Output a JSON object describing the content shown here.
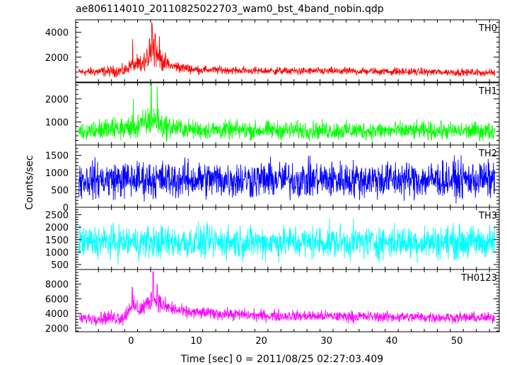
{
  "chart_data": {
    "type": "line",
    "title": "ae806114010_20110825022703_wam0_bst_4band_nobin.qdp",
    "xlabel": "Time [sec] 0 = 2011/08/25 02:27:03.409",
    "ylabel": "Counts/sec",
    "xlim": [
      -8.5,
      56.5
    ],
    "x_ticks": [
      0,
      10,
      20,
      30,
      40,
      50
    ],
    "x_tick_labels": [
      "0",
      "10",
      "20",
      "30",
      "40",
      "50"
    ],
    "x_data_range": [
      -8,
      55.8
    ],
    "panels": [
      {
        "label": "TH0",
        "color": "#ff0000",
        "ylim": [
          0,
          5000
        ],
        "y_ticks": [
          2000,
          4000
        ],
        "y_tick_labels": [
          "2000",
          "4000"
        ],
        "baseline": [
          [
            -8,
            800
          ],
          [
            -1,
            900
          ],
          [
            0,
            1400
          ],
          [
            1.5,
            1300
          ],
          [
            2.5,
            1800
          ],
          [
            3.3,
            2800
          ],
          [
            4.5,
            1800
          ],
          [
            6,
            1300
          ],
          [
            10,
            1000
          ],
          [
            20,
            900
          ],
          [
            40,
            850
          ],
          [
            55.8,
            750
          ]
        ],
        "noise": [
          [
            -8,
            250
          ],
          [
            0,
            400
          ],
          [
            3.3,
            900
          ],
          [
            6,
            400
          ],
          [
            10,
            250
          ],
          [
            55.8,
            220
          ]
        ],
        "spikes": [
          [
            3.2,
            4900
          ],
          [
            3.7,
            4000
          ],
          [
            2.8,
            3600
          ],
          [
            0.3,
            3500
          ],
          [
            4.4,
            3900
          ]
        ]
      },
      {
        "label": "TH1",
        "color": "#00ff00",
        "ylim": [
          0,
          2700
        ],
        "y_ticks": [
          1000,
          2000
        ],
        "y_tick_labels": [
          "1000",
          "2000"
        ],
        "baseline": [
          [
            -8,
            600
          ],
          [
            0,
            750
          ],
          [
            1.5,
            850
          ],
          [
            3.3,
            1100
          ],
          [
            5,
            800
          ],
          [
            10,
            650
          ],
          [
            55.8,
            600
          ]
        ],
        "noise": [
          [
            -8,
            300
          ],
          [
            3.3,
            500
          ],
          [
            8,
            320
          ],
          [
            55.8,
            300
          ]
        ],
        "spikes": [
          [
            3.1,
            2700
          ],
          [
            4.0,
            2600
          ],
          [
            0.3,
            2000
          ]
        ]
      },
      {
        "label": "TH2",
        "color": "#0000ff",
        "ylim": [
          0,
          1800
        ],
        "y_ticks": [
          0,
          500,
          1000,
          1500
        ],
        "y_tick_labels": [
          "0",
          "500",
          "1000",
          "1500"
        ],
        "baseline": [
          [
            -8,
            800
          ],
          [
            55.8,
            800
          ]
        ],
        "noise": [
          [
            -8,
            420
          ],
          [
            55.8,
            420
          ]
        ],
        "spikes": []
      },
      {
        "label": "TH3",
        "color": "#00ffff",
        "ylim": [
          300,
          2800
        ],
        "y_ticks": [
          500,
          1000,
          1500,
          2000,
          2500
        ],
        "y_tick_labels": [
          "500",
          "1000",
          "1500",
          "2000",
          "2500"
        ],
        "baseline": [
          [
            -8,
            1400
          ],
          [
            55.8,
            1400
          ]
        ],
        "noise": [
          [
            -8,
            520
          ],
          [
            55.8,
            520
          ]
        ],
        "spikes": []
      },
      {
        "label": "TH0123",
        "color": "#ff00ff",
        "ylim": [
          1500,
          10000
        ],
        "y_ticks": [
          2000,
          4000,
          6000,
          8000
        ],
        "y_tick_labels": [
          "2000",
          "4000",
          "6000",
          "8000"
        ],
        "baseline": [
          [
            -8,
            3300
          ],
          [
            -1,
            3500
          ],
          [
            0,
            5200
          ],
          [
            1.5,
            4500
          ],
          [
            3.3,
            6000
          ],
          [
            5,
            5000
          ],
          [
            8,
            4200
          ],
          [
            20,
            3700
          ],
          [
            55.8,
            3400
          ]
        ],
        "noise": [
          [
            -8,
            550
          ],
          [
            3.3,
            1100
          ],
          [
            8,
            650
          ],
          [
            55.8,
            550
          ]
        ],
        "spikes": [
          [
            3.4,
            9800
          ],
          [
            4.0,
            8300
          ],
          [
            0.2,
            7800
          ]
        ]
      }
    ]
  }
}
